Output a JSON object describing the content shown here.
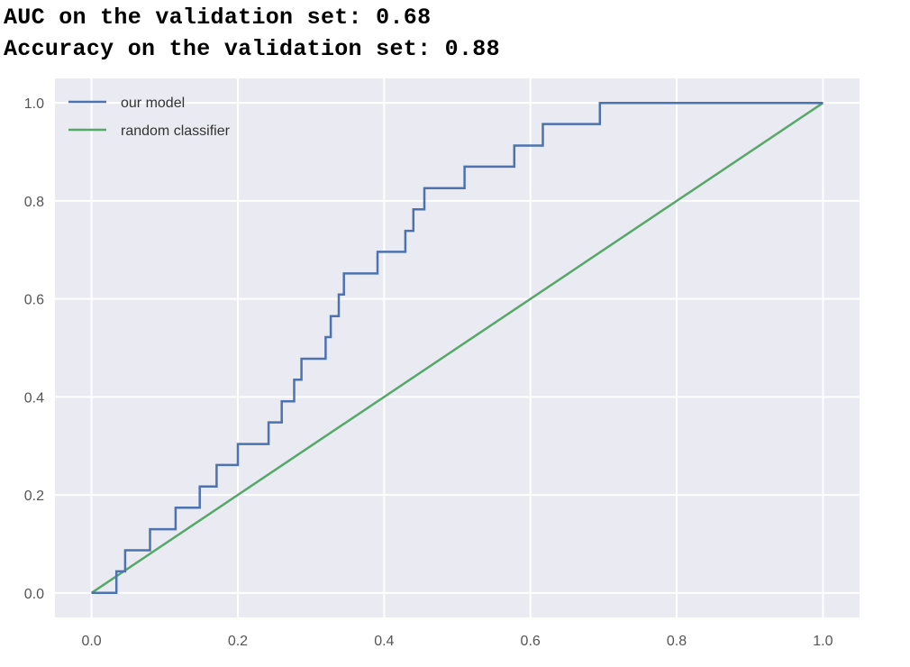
{
  "output": {
    "auc_line": "AUC on the validation set: 0.68",
    "accuracy_line": "Accuracy on the validation set: 0.88"
  },
  "chart_data": {
    "type": "line",
    "xlim": [
      -0.05,
      1.05
    ],
    "ylim": [
      -0.05,
      1.05
    ],
    "xticks": [
      0.0,
      0.2,
      0.4,
      0.6,
      0.8,
      1.0
    ],
    "yticks": [
      0.0,
      0.2,
      0.4,
      0.6,
      0.8,
      1.0
    ],
    "xtick_labels": [
      "0.0",
      "0.2",
      "0.4",
      "0.6",
      "0.8",
      "1.0"
    ],
    "ytick_labels": [
      "0.0",
      "0.2",
      "0.4",
      "0.6",
      "0.8",
      "1.0"
    ],
    "grid": true,
    "legend_position": "top-left",
    "series": [
      {
        "name": "our model",
        "color": "#4c72b0",
        "x": [
          0.0,
          0.034,
          0.034,
          0.046,
          0.046,
          0.08,
          0.08,
          0.115,
          0.115,
          0.148,
          0.148,
          0.171,
          0.171,
          0.2,
          0.2,
          0.242,
          0.242,
          0.26,
          0.26,
          0.277,
          0.277,
          0.287,
          0.287,
          0.32,
          0.32,
          0.327,
          0.327,
          0.338,
          0.338,
          0.345,
          0.345,
          0.391,
          0.391,
          0.429,
          0.429,
          0.44,
          0.44,
          0.455,
          0.455,
          0.51,
          0.51,
          0.578,
          0.578,
          0.617,
          0.617,
          0.695,
          0.695,
          1.0
        ],
        "y": [
          0.0,
          0.0,
          0.044,
          0.044,
          0.087,
          0.087,
          0.13,
          0.13,
          0.174,
          0.174,
          0.217,
          0.217,
          0.261,
          0.261,
          0.304,
          0.304,
          0.348,
          0.348,
          0.391,
          0.391,
          0.435,
          0.435,
          0.478,
          0.478,
          0.522,
          0.522,
          0.565,
          0.565,
          0.609,
          0.609,
          0.652,
          0.652,
          0.696,
          0.696,
          0.739,
          0.739,
          0.783,
          0.783,
          0.826,
          0.826,
          0.87,
          0.87,
          0.913,
          0.913,
          0.957,
          0.957,
          1.0,
          1.0
        ]
      },
      {
        "name": "random classifier",
        "color": "#55a868",
        "x": [
          0.0,
          1.0
        ],
        "y": [
          0.0,
          1.0
        ]
      }
    ]
  }
}
